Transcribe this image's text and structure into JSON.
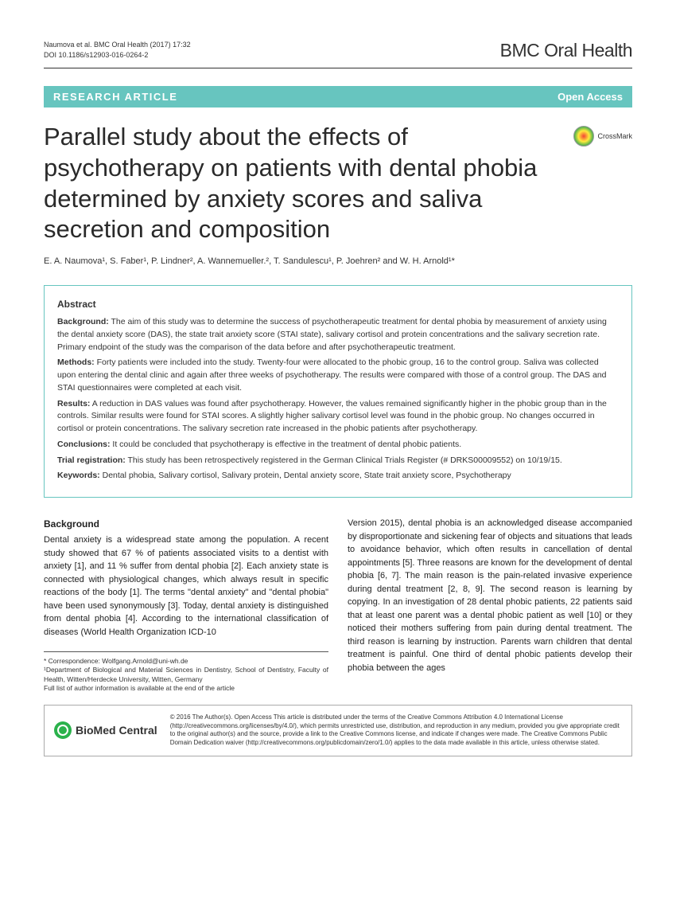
{
  "header": {
    "citation_line1": "Naumova et al. BMC Oral Health  (2017) 17:32",
    "citation_line2": "DOI 10.1186/s12903-016-0264-2",
    "journal": "BMC Oral Health"
  },
  "banner": {
    "left": "RESEARCH ARTICLE",
    "right": "Open Access"
  },
  "title": "Parallel study about the effects of psychotherapy on patients with dental phobia determined by anxiety scores and saliva secretion and composition",
  "crossmark_label": "CrossMark",
  "authors": "E. A. Naumova¹, S. Faber¹, P. Lindner², A. Wannemueller.², T. Sandulescu¹, P. Joehren² and W. H. Arnold¹*",
  "abstract": {
    "heading": "Abstract",
    "background_label": "Background:",
    "background": " The aim of this study was to determine the success of psychotherapeutic treatment for dental phobia by measurement of anxiety using the dental anxiety score (DAS), the state trait anxiety score (STAI state), salivary cortisol and protein concentrations and the salivary secretion rate. Primary endpoint of the study was the comparison of the data before and after psychotherapeutic treatment.",
    "methods_label": "Methods:",
    "methods": " Forty patients were included into the study. Twenty-four were allocated to the phobic group, 16 to the control group. Saliva was collected upon entering the dental clinic and again after three weeks of psychotherapy. The results were compared with those of a control group. The DAS and STAI questionnaires were completed at each visit.",
    "results_label": "Results:",
    "results": " A reduction in DAS values was found after psychotherapy. However, the values remained significantly higher in the phobic group than in the controls. Similar results were found for STAI scores. A slightly higher salivary cortisol level was found in the phobic group. No changes occurred in cortisol or protein concentrations. The salivary secretion rate increased in the phobic patients after psychotherapy.",
    "conclusions_label": "Conclusions:",
    "conclusions": " It could be concluded that psychotherapy is effective in the treatment of dental phobic patients.",
    "trial_label": "Trial registration:",
    "trial": " This study has been retrospectively registered in the German Clinical Trials Register (# DRKS00009552) on 10/19/15.",
    "keywords_label": "Keywords:",
    "keywords": " Dental phobia, Salivary cortisol, Salivary protein, Dental anxiety score, State trait anxiety score, Psychotherapy"
  },
  "body": {
    "heading": "Background",
    "col1": "Dental anxiety is a widespread state among the population. A recent study showed that 67 % of patients associated visits to a dentist with anxiety [1], and 11 % suffer from dental phobia [2]. Each anxiety state is connected with physiological changes, which always result in specific reactions of the body [1]. The terms \"dental anxiety\" and \"dental phobia\" have been used synonymously [3]. Today, dental anxiety is distinguished from dental phobia [4]. According to the international classification of diseases (World Health Organization ICD-10",
    "col2": "Version 2015), dental phobia is an acknowledged disease accompanied by disproportionate and sickening fear of objects and situations that leads to avoidance behavior, which often results in cancellation of dental appointments [5]. Three reasons are known for the development of dental phobia [6, 7]. The main reason is the pain-related invasive experience during dental treatment [2, 8, 9]. The second reason is learning by copying. In an investigation of 28 dental phobic patients, 22 patients said that at least one parent was a dental phobic patient as well [10] or they noticed their mothers suffering from pain during dental treatment. The third reason is learning by instruction. Parents warn children that dental treatment is painful. One third of dental phobic patients develop their phobia between the ages"
  },
  "correspondence": {
    "line1": "* Correspondence: Wolfgang.Arnold@uni-wh.de",
    "line2": "¹Department of Biological and Material Sciences in Dentistry, School of Dentistry, Faculty of Health, Witten/Herdecke University, Witten, Germany",
    "line3": "Full list of author information is available at the end of the article"
  },
  "footer": {
    "logo": "BioMed Central",
    "license": "© 2016 The Author(s). Open Access This article is distributed under the terms of the Creative Commons Attribution 4.0 International License (http://creativecommons.org/licenses/by/4.0/), which permits unrestricted use, distribution, and reproduction in any medium, provided you give appropriate credit to the original author(s) and the source, provide a link to the Creative Commons license, and indicate if changes were made. The Creative Commons Public Domain Dedication waiver (http://creativecommons.org/publicdomain/zero/1.0/) applies to the data made available in this article, unless otherwise stated."
  }
}
